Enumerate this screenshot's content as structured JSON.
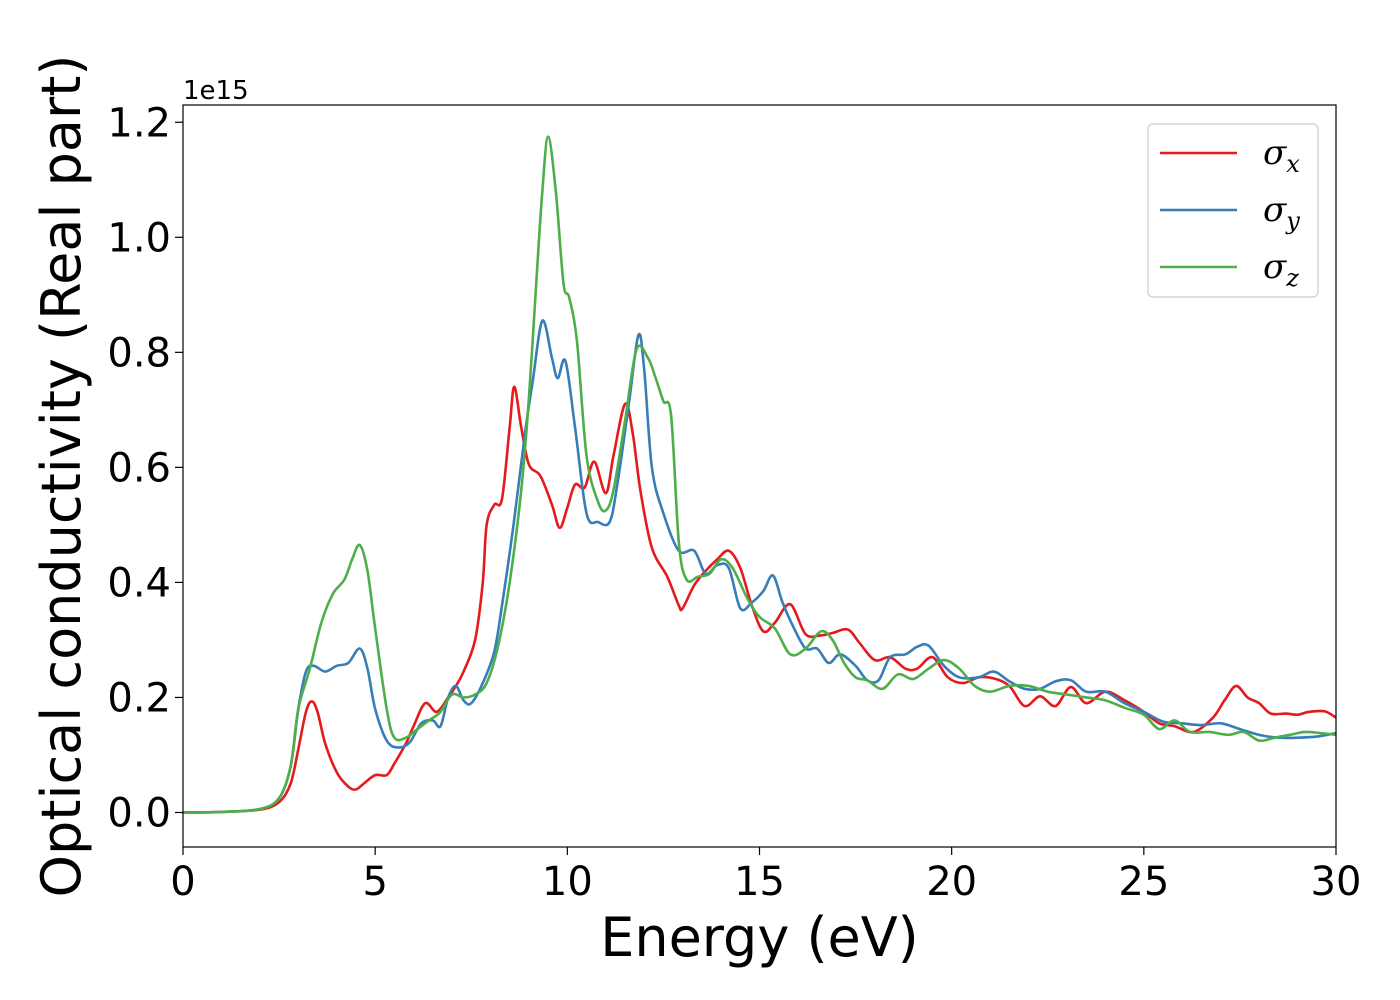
{
  "chart_data": {
    "type": "line",
    "title": "",
    "xlabel": "Energy (eV)",
    "ylabel": "Optical conductivity (Real part)",
    "y_offset_label": "1e15",
    "xlim": [
      0,
      30
    ],
    "ylim": [
      -0.06,
      1.23
    ],
    "x_ticks": [
      0,
      5,
      10,
      15,
      20,
      25,
      30
    ],
    "y_ticks": [
      0.0,
      0.2,
      0.4,
      0.6,
      0.8,
      1.0,
      1.2
    ],
    "x_tick_labels": [
      "0",
      "5",
      "10",
      "15",
      "20",
      "25",
      "30"
    ],
    "y_tick_labels": [
      "0.0",
      "0.2",
      "0.4",
      "0.6",
      "0.8",
      "1.0",
      "1.2"
    ],
    "grid": false,
    "legend_position": "top-right",
    "series": [
      {
        "name": "σx",
        "symbol": "σ",
        "subscript": "x",
        "color": "#e41a1c",
        "points": [
          [
            0,
            0
          ],
          [
            1,
            0.001
          ],
          [
            2,
            0.005
          ],
          [
            2.5,
            0.018
          ],
          [
            2.8,
            0.05
          ],
          [
            3.0,
            0.11
          ],
          [
            3.2,
            0.175
          ],
          [
            3.35,
            0.193
          ],
          [
            3.5,
            0.175
          ],
          [
            3.7,
            0.12
          ],
          [
            4.0,
            0.07
          ],
          [
            4.3,
            0.045
          ],
          [
            4.5,
            0.04
          ],
          [
            4.7,
            0.05
          ],
          [
            5.0,
            0.065
          ],
          [
            5.3,
            0.065
          ],
          [
            5.5,
            0.085
          ],
          [
            5.8,
            0.12
          ],
          [
            6.0,
            0.15
          ],
          [
            6.3,
            0.19
          ],
          [
            6.6,
            0.175
          ],
          [
            6.9,
            0.2
          ],
          [
            7.1,
            0.22
          ],
          [
            7.3,
            0.245
          ],
          [
            7.6,
            0.3
          ],
          [
            7.8,
            0.4
          ],
          [
            7.9,
            0.5
          ],
          [
            8.1,
            0.535
          ],
          [
            8.3,
            0.545
          ],
          [
            8.5,
            0.67
          ],
          [
            8.62,
            0.74
          ],
          [
            8.8,
            0.67
          ],
          [
            9.0,
            0.605
          ],
          [
            9.3,
            0.585
          ],
          [
            9.6,
            0.535
          ],
          [
            9.8,
            0.495
          ],
          [
            10.0,
            0.53
          ],
          [
            10.2,
            0.57
          ],
          [
            10.45,
            0.565
          ],
          [
            10.7,
            0.61
          ],
          [
            11.0,
            0.555
          ],
          [
            11.2,
            0.62
          ],
          [
            11.5,
            0.71
          ],
          [
            11.7,
            0.66
          ],
          [
            11.9,
            0.56
          ],
          [
            12.2,
            0.46
          ],
          [
            12.6,
            0.41
          ],
          [
            12.9,
            0.36
          ],
          [
            13.0,
            0.355
          ],
          [
            13.3,
            0.395
          ],
          [
            13.6,
            0.42
          ],
          [
            13.9,
            0.44
          ],
          [
            14.2,
            0.455
          ],
          [
            14.5,
            0.425
          ],
          [
            14.8,
            0.36
          ],
          [
            15.1,
            0.315
          ],
          [
            15.4,
            0.33
          ],
          [
            15.8,
            0.362
          ],
          [
            16.2,
            0.31
          ],
          [
            16.6,
            0.308
          ],
          [
            16.9,
            0.312
          ],
          [
            17.3,
            0.318
          ],
          [
            17.6,
            0.295
          ],
          [
            18.0,
            0.265
          ],
          [
            18.4,
            0.27
          ],
          [
            18.8,
            0.25
          ],
          [
            19.1,
            0.25
          ],
          [
            19.5,
            0.27
          ],
          [
            19.9,
            0.235
          ],
          [
            20.3,
            0.225
          ],
          [
            20.7,
            0.235
          ],
          [
            21.1,
            0.233
          ],
          [
            21.5,
            0.22
          ],
          [
            21.9,
            0.185
          ],
          [
            22.3,
            0.202
          ],
          [
            22.7,
            0.185
          ],
          [
            23.1,
            0.218
          ],
          [
            23.5,
            0.19
          ],
          [
            24.0,
            0.21
          ],
          [
            24.5,
            0.195
          ],
          [
            25.0,
            0.175
          ],
          [
            25.4,
            0.155
          ],
          [
            25.8,
            0.15
          ],
          [
            26.3,
            0.14
          ],
          [
            26.8,
            0.165
          ],
          [
            27.1,
            0.195
          ],
          [
            27.4,
            0.22
          ],
          [
            27.7,
            0.2
          ],
          [
            28.0,
            0.19
          ],
          [
            28.3,
            0.172
          ],
          [
            28.7,
            0.172
          ],
          [
            29.0,
            0.17
          ],
          [
            29.3,
            0.175
          ],
          [
            29.7,
            0.176
          ],
          [
            30.0,
            0.165
          ]
        ]
      },
      {
        "name": "σy",
        "symbol": "σ",
        "subscript": "y",
        "color": "#377eb8",
        "points": [
          [
            0,
            0
          ],
          [
            1,
            0.001
          ],
          [
            2,
            0.006
          ],
          [
            2.5,
            0.025
          ],
          [
            2.8,
            0.08
          ],
          [
            3.0,
            0.18
          ],
          [
            3.2,
            0.245
          ],
          [
            3.4,
            0.255
          ],
          [
            3.7,
            0.245
          ],
          [
            4.0,
            0.255
          ],
          [
            4.3,
            0.26
          ],
          [
            4.6,
            0.285
          ],
          [
            4.8,
            0.25
          ],
          [
            5.0,
            0.18
          ],
          [
            5.3,
            0.125
          ],
          [
            5.6,
            0.113
          ],
          [
            5.9,
            0.122
          ],
          [
            6.2,
            0.155
          ],
          [
            6.5,
            0.16
          ],
          [
            6.7,
            0.15
          ],
          [
            6.9,
            0.2
          ],
          [
            7.1,
            0.22
          ],
          [
            7.3,
            0.195
          ],
          [
            7.5,
            0.19
          ],
          [
            7.8,
            0.225
          ],
          [
            8.1,
            0.28
          ],
          [
            8.3,
            0.36
          ],
          [
            8.6,
            0.5
          ],
          [
            8.9,
            0.66
          ],
          [
            9.1,
            0.75
          ],
          [
            9.35,
            0.855
          ],
          [
            9.6,
            0.79
          ],
          [
            9.75,
            0.755
          ],
          [
            9.95,
            0.785
          ],
          [
            10.2,
            0.67
          ],
          [
            10.5,
            0.52
          ],
          [
            10.8,
            0.505
          ],
          [
            11.1,
            0.505
          ],
          [
            11.3,
            0.57
          ],
          [
            11.6,
            0.71
          ],
          [
            11.85,
            0.83
          ],
          [
            12.0,
            0.77
          ],
          [
            12.2,
            0.6
          ],
          [
            12.5,
            0.52
          ],
          [
            12.9,
            0.455
          ],
          [
            13.3,
            0.455
          ],
          [
            13.6,
            0.415
          ],
          [
            13.9,
            0.43
          ],
          [
            14.2,
            0.425
          ],
          [
            14.5,
            0.355
          ],
          [
            14.8,
            0.365
          ],
          [
            15.1,
            0.385
          ],
          [
            15.35,
            0.412
          ],
          [
            15.6,
            0.365
          ],
          [
            15.9,
            0.32
          ],
          [
            16.2,
            0.285
          ],
          [
            16.5,
            0.285
          ],
          [
            16.8,
            0.26
          ],
          [
            17.1,
            0.275
          ],
          [
            17.5,
            0.255
          ],
          [
            17.8,
            0.23
          ],
          [
            18.1,
            0.23
          ],
          [
            18.4,
            0.27
          ],
          [
            18.8,
            0.275
          ],
          [
            19.1,
            0.288
          ],
          [
            19.4,
            0.29
          ],
          [
            19.8,
            0.255
          ],
          [
            20.2,
            0.235
          ],
          [
            20.7,
            0.235
          ],
          [
            21.1,
            0.245
          ],
          [
            21.5,
            0.228
          ],
          [
            21.9,
            0.215
          ],
          [
            22.3,
            0.215
          ],
          [
            22.7,
            0.228
          ],
          [
            23.1,
            0.23
          ],
          [
            23.5,
            0.21
          ],
          [
            24.0,
            0.21
          ],
          [
            24.5,
            0.19
          ],
          [
            25.0,
            0.175
          ],
          [
            25.5,
            0.158
          ],
          [
            26.0,
            0.155
          ],
          [
            26.5,
            0.152
          ],
          [
            27.0,
            0.155
          ],
          [
            27.5,
            0.145
          ],
          [
            28.0,
            0.135
          ],
          [
            28.5,
            0.13
          ],
          [
            29.0,
            0.13
          ],
          [
            29.5,
            0.132
          ],
          [
            30.0,
            0.138
          ]
        ]
      },
      {
        "name": "σz",
        "symbol": "σ",
        "subscript": "z",
        "color": "#4daf4a",
        "points": [
          [
            0,
            0
          ],
          [
            1,
            0.001
          ],
          [
            2,
            0.006
          ],
          [
            2.5,
            0.025
          ],
          [
            2.8,
            0.08
          ],
          [
            3.0,
            0.18
          ],
          [
            3.3,
            0.25
          ],
          [
            3.6,
            0.33
          ],
          [
            3.9,
            0.38
          ],
          [
            4.2,
            0.405
          ],
          [
            4.4,
            0.44
          ],
          [
            4.6,
            0.465
          ],
          [
            4.8,
            0.42
          ],
          [
            5.0,
            0.32
          ],
          [
            5.3,
            0.18
          ],
          [
            5.5,
            0.13
          ],
          [
            5.8,
            0.13
          ],
          [
            6.1,
            0.145
          ],
          [
            6.4,
            0.16
          ],
          [
            6.7,
            0.175
          ],
          [
            7.0,
            0.205
          ],
          [
            7.3,
            0.2
          ],
          [
            7.6,
            0.205
          ],
          [
            7.9,
            0.225
          ],
          [
            8.2,
            0.29
          ],
          [
            8.5,
            0.4
          ],
          [
            8.8,
            0.56
          ],
          [
            9.0,
            0.72
          ],
          [
            9.2,
            0.93
          ],
          [
            9.35,
            1.08
          ],
          [
            9.5,
            1.175
          ],
          [
            9.7,
            1.08
          ],
          [
            9.9,
            0.92
          ],
          [
            10.05,
            0.895
          ],
          [
            10.25,
            0.82
          ],
          [
            10.5,
            0.62
          ],
          [
            10.8,
            0.54
          ],
          [
            11.0,
            0.525
          ],
          [
            11.2,
            0.56
          ],
          [
            11.5,
            0.68
          ],
          [
            11.8,
            0.805
          ],
          [
            12.1,
            0.79
          ],
          [
            12.3,
            0.755
          ],
          [
            12.5,
            0.715
          ],
          [
            12.7,
            0.69
          ],
          [
            12.9,
            0.47
          ],
          [
            13.1,
            0.405
          ],
          [
            13.4,
            0.41
          ],
          [
            13.7,
            0.415
          ],
          [
            14.0,
            0.44
          ],
          [
            14.3,
            0.425
          ],
          [
            14.7,
            0.37
          ],
          [
            15.0,
            0.34
          ],
          [
            15.4,
            0.32
          ],
          [
            15.8,
            0.275
          ],
          [
            16.2,
            0.285
          ],
          [
            16.6,
            0.315
          ],
          [
            16.9,
            0.3
          ],
          [
            17.2,
            0.26
          ],
          [
            17.5,
            0.235
          ],
          [
            17.8,
            0.23
          ],
          [
            18.2,
            0.215
          ],
          [
            18.6,
            0.24
          ],
          [
            19.0,
            0.232
          ],
          [
            19.4,
            0.25
          ],
          [
            19.8,
            0.265
          ],
          [
            20.2,
            0.25
          ],
          [
            20.6,
            0.22
          ],
          [
            21.0,
            0.21
          ],
          [
            21.5,
            0.22
          ],
          [
            22.0,
            0.22
          ],
          [
            22.5,
            0.21
          ],
          [
            23.0,
            0.205
          ],
          [
            23.5,
            0.2
          ],
          [
            24.0,
            0.195
          ],
          [
            24.5,
            0.182
          ],
          [
            25.0,
            0.17
          ],
          [
            25.4,
            0.145
          ],
          [
            25.8,
            0.16
          ],
          [
            26.2,
            0.14
          ],
          [
            26.7,
            0.14
          ],
          [
            27.2,
            0.135
          ],
          [
            27.6,
            0.14
          ],
          [
            28.0,
            0.125
          ],
          [
            28.4,
            0.13
          ],
          [
            28.8,
            0.135
          ],
          [
            29.2,
            0.14
          ],
          [
            29.6,
            0.138
          ],
          [
            30.0,
            0.135
          ]
        ]
      }
    ]
  }
}
